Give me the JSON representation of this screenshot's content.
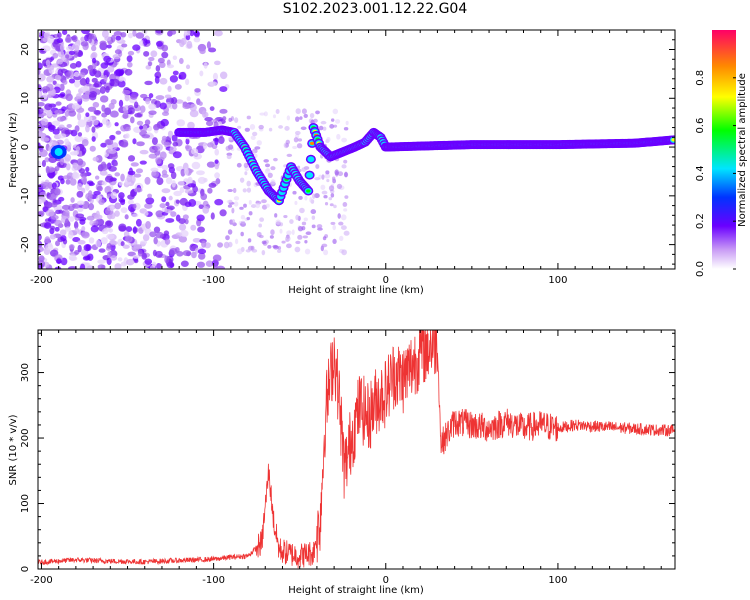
{
  "title": "S102.2023.001.12.22.G04",
  "colors": {
    "snr_line": "#ee3333",
    "frame": "#000000"
  },
  "chart_data": [
    {
      "type": "heatmap",
      "xlabel": "Height of straight line (km)",
      "ylabel": "Frequency (Hz)",
      "xlim": [
        -202,
        168
      ],
      "ylim": [
        -25,
        24
      ],
      "xticks": [
        -200,
        -100,
        0,
        100
      ],
      "yticks": [
        -20,
        -10,
        0,
        10,
        20
      ],
      "colorbar": {
        "label": "Normalized spectral amplitude",
        "range": [
          0,
          1
        ],
        "ticks": [
          0.0,
          0.2,
          0.4,
          0.6,
          0.8
        ]
      },
      "ridge": [
        [
          -190,
          0
        ],
        [
          -120,
          3
        ],
        [
          -105,
          3
        ],
        [
          -95,
          3.5
        ],
        [
          -88,
          3
        ],
        [
          -82,
          0
        ],
        [
          -75,
          -5
        ],
        [
          -68,
          -9
        ],
        [
          -62,
          -11
        ],
        [
          -55,
          -4
        ],
        [
          -50,
          -7
        ],
        [
          -45,
          -9
        ],
        [
          -42,
          4
        ],
        [
          -38,
          0
        ],
        [
          -32,
          -2
        ],
        [
          -25,
          -1
        ],
        [
          -18,
          0
        ],
        [
          -12,
          1
        ],
        [
          -7,
          3
        ],
        [
          -3,
          2
        ],
        [
          0,
          0
        ],
        [
          50,
          0.5
        ],
        [
          100,
          0.5
        ],
        [
          145,
          0.8
        ],
        [
          168,
          1.5
        ]
      ]
    },
    {
      "type": "line",
      "xlabel": "Height of straight line (km)",
      "ylabel": "SNR (10 * v/v)",
      "xlim": [
        -202,
        168
      ],
      "ylim": [
        0,
        365
      ],
      "xticks": [
        -200,
        -100,
        0,
        100
      ],
      "yticks": [
        0,
        100,
        200,
        300
      ],
      "series": [
        {
          "x": [
            -202,
            -180,
            -160,
            -140,
            -120,
            -100,
            -90,
            -80,
            -72,
            -68,
            -65,
            -62,
            -58,
            -50,
            -42,
            -38,
            -35,
            -30,
            -27,
            -24,
            -20,
            -15,
            -10,
            -5,
            0,
            5,
            10,
            15,
            20,
            25,
            30,
            32,
            40,
            50,
            60,
            70,
            80,
            90,
            100,
            110,
            120,
            140,
            160,
            168
          ],
          "y": [
            10,
            14,
            12,
            11,
            13,
            15,
            18,
            20,
            40,
            150,
            70,
            30,
            25,
            20,
            25,
            80,
            240,
            330,
            260,
            150,
            200,
            250,
            230,
            260,
            270,
            300,
            290,
            310,
            330,
            340,
            350,
            190,
            225,
            220,
            215,
            225,
            215,
            220,
            215,
            220,
            218,
            215,
            212,
            212
          ]
        }
      ]
    }
  ]
}
